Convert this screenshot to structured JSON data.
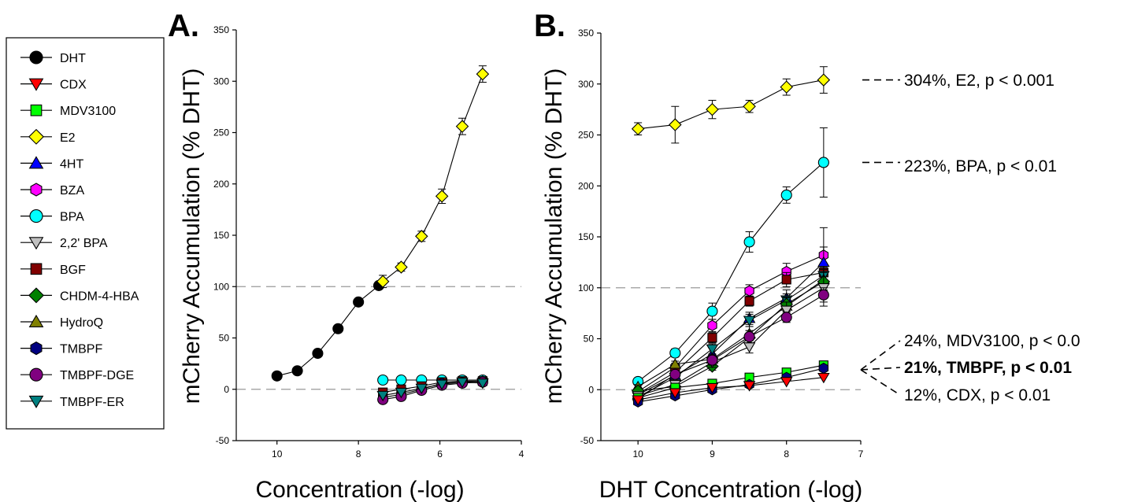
{
  "legend": {
    "items": [
      {
        "name": "DHT",
        "marker": "circle",
        "color": "#000000"
      },
      {
        "name": "CDX",
        "marker": "triangle-down",
        "color": "#ff0000"
      },
      {
        "name": "MDV3100",
        "marker": "square",
        "color": "#00ff00"
      },
      {
        "name": "E2",
        "marker": "diamond",
        "color": "#ffff00"
      },
      {
        "name": "4HT",
        "marker": "triangle-up",
        "color": "#0000ff"
      },
      {
        "name": "BZA",
        "marker": "hexagon",
        "color": "#ff00ff"
      },
      {
        "name": "BPA",
        "marker": "circle",
        "color": "#00ffff"
      },
      {
        "name": "2,2' BPA",
        "marker": "triangle-down",
        "color": "#c0c0c0"
      },
      {
        "name": "BGF",
        "marker": "square",
        "color": "#800000"
      },
      {
        "name": "CHDM-4-HBA",
        "marker": "diamond",
        "color": "#008000"
      },
      {
        "name": "HydroQ",
        "marker": "triangle-up",
        "color": "#808000"
      },
      {
        "name": "TMBPF",
        "marker": "hexagon",
        "color": "#000080"
      },
      {
        "name": "TMBPF-DGE",
        "marker": "circle",
        "color": "#800080"
      },
      {
        "name": "TMBPF-ER",
        "marker": "triangle-down",
        "color": "#008080"
      }
    ]
  },
  "chart_data": [
    {
      "type": "scatter",
      "panel_label": "A.",
      "xlabel": "Concentration (-log)",
      "ylabel": "mCherry Accumulation (% DHT)",
      "xlim": [
        11,
        4
      ],
      "ylim": [
        -50,
        350
      ],
      "x_ticks": [
        "10",
        "8",
        "6",
        "4"
      ],
      "y_ticks": [
        "-50",
        "0",
        "50",
        "100",
        "150",
        "200",
        "250",
        "300",
        "350"
      ],
      "reference_lines": [
        0,
        100
      ],
      "grid": false,
      "series": [
        {
          "name": "DHT",
          "x": [
            10,
            9.5,
            9,
            8.5,
            8,
            7.5
          ],
          "y": [
            13,
            18,
            35,
            59,
            85,
            101
          ]
        },
        {
          "name": "E2",
          "x": [
            7.4,
            6.95,
            6.45,
            5.95,
            5.45,
            4.95
          ],
          "y": [
            105,
            119,
            149,
            188,
            256,
            307
          ],
          "err": [
            6,
            4,
            5,
            7,
            8,
            8
          ]
        },
        {
          "name": "BPA",
          "x": [
            7.4,
            6.95,
            6.45,
            5.95,
            5.45,
            4.95
          ],
          "y": [
            9,
            9,
            9,
            9,
            9,
            9
          ]
        },
        {
          "name": "BGF",
          "x": [
            7.4,
            6.95,
            6.45,
            5.95,
            5.45,
            4.95
          ],
          "y": [
            -3,
            0,
            3,
            7,
            8,
            8
          ]
        },
        {
          "name": "TMBPF",
          "x": [
            7.4,
            6.95,
            6.45,
            5.95,
            5.45,
            4.95
          ],
          "y": [
            -8,
            -5,
            0,
            6,
            7,
            8
          ]
        },
        {
          "name": "TMBPF-DGE",
          "x": [
            7.4,
            6.95,
            6.45,
            5.95,
            5.45,
            4.95
          ],
          "y": [
            -10,
            -7,
            -1,
            4,
            6,
            7
          ]
        },
        {
          "name": "TMBPF-ER",
          "x": [
            7.4,
            6.95,
            6.45,
            5.95,
            5.45,
            4.95
          ],
          "y": [
            -6,
            -3,
            1,
            5,
            7,
            6
          ]
        }
      ]
    },
    {
      "type": "scatter",
      "panel_label": "B.",
      "xlabel": "DHT Concentration (-log)",
      "ylabel": "mCherry Accumulation (% DHT)",
      "xlim": [
        10.5,
        7
      ],
      "ylim": [
        -50,
        350
      ],
      "x_ticks": [
        "10",
        "9",
        "8",
        "7"
      ],
      "y_ticks": [
        "-50",
        "0",
        "50",
        "100",
        "150",
        "200",
        "250",
        "300",
        "350"
      ],
      "reference_lines": [
        0,
        100
      ],
      "grid": false,
      "series": [
        {
          "name": "E2",
          "x": [
            10,
            9.5,
            9,
            8.5,
            8,
            7.5
          ],
          "y": [
            256,
            260,
            275,
            278,
            297,
            304
          ],
          "err": [
            6,
            18,
            9,
            6,
            8,
            13
          ]
        },
        {
          "name": "BPA",
          "x": [
            10,
            9.5,
            9,
            8.5,
            8,
            7.5
          ],
          "y": [
            8,
            36,
            77,
            145,
            191,
            223
          ],
          "err": [
            3,
            4,
            8,
            10,
            8,
            34
          ]
        },
        {
          "name": "BZA",
          "x": [
            10,
            9.5,
            9,
            8.5,
            8,
            7.5
          ],
          "y": [
            -2,
            22,
            63,
            97,
            116,
            132
          ],
          "err": [
            3,
            4,
            6,
            6,
            8,
            8
          ]
        },
        {
          "name": "BGF",
          "x": [
            10,
            9.5,
            9,
            8.5,
            8,
            7.5
          ],
          "y": [
            -4,
            17,
            51,
            87,
            108,
            115
          ],
          "err": [
            2,
            3,
            5,
            5,
            7,
            8
          ]
        },
        {
          "name": "4HT",
          "x": [
            10,
            9.5,
            9,
            8.5,
            8,
            7.5
          ],
          "y": [
            -5,
            14,
            35,
            70,
            90,
            125
          ],
          "err": [
            2,
            3,
            6,
            6,
            8,
            34
          ]
        },
        {
          "name": "TMBPF-ER",
          "x": [
            10,
            9.5,
            9,
            8.5,
            8,
            7.5
          ],
          "y": [
            -7,
            12,
            40,
            68,
            88,
            112
          ],
          "err": [
            2,
            3,
            5,
            6,
            6,
            8
          ]
        },
        {
          "name": "HydroQ",
          "x": [
            10,
            9.5,
            9,
            8.5,
            8,
            7.5
          ],
          "y": [
            3,
            25,
            30,
            55,
            82,
            108
          ],
          "err": [
            2,
            3,
            5,
            7,
            8,
            10
          ]
        },
        {
          "name": "CHDM-4-HBA",
          "x": [
            10,
            9.5,
            9,
            8.5,
            8,
            7.5
          ],
          "y": [
            -1,
            3,
            23,
            51,
            84,
            106
          ],
          "err": [
            2,
            3,
            4,
            7,
            7,
            9
          ]
        },
        {
          "name": "2,2' BPA",
          "x": [
            10,
            9.5,
            9,
            8.5,
            8,
            7.5
          ],
          "y": [
            -6,
            5,
            27,
            42,
            78,
            100
          ],
          "err": [
            2,
            3,
            5,
            6,
            8,
            18
          ]
        },
        {
          "name": "TMBPF-DGE",
          "x": [
            10,
            9.5,
            9,
            8.5,
            8,
            7.5
          ],
          "y": [
            -9,
            15,
            29,
            52,
            71,
            93
          ],
          "err": [
            2,
            3,
            5,
            6,
            5,
            7
          ]
        },
        {
          "name": "MDV3100",
          "x": [
            10,
            9.5,
            9,
            8.5,
            8,
            7.5
          ],
          "y": [
            -8,
            2,
            6,
            12,
            17,
            24
          ]
        },
        {
          "name": "TMBPF",
          "x": [
            10,
            9.5,
            9,
            8.5,
            8,
            7.5
          ],
          "y": [
            -12,
            -6,
            0,
            5,
            12,
            21
          ]
        },
        {
          "name": "CDX",
          "x": [
            10,
            9.5,
            9,
            8.5,
            8,
            7.5
          ],
          "y": [
            -10,
            -3,
            2,
            4,
            8,
            12
          ]
        }
      ],
      "annotations": [
        {
          "text": "304%, E2, p < 0.001",
          "y": 304,
          "bold": false
        },
        {
          "text": "223%, BPA, p < 0.01",
          "y": 223,
          "bold": false
        },
        {
          "text": "24%, MDV3100, p < 0.0",
          "y": 24,
          "bold": false
        },
        {
          "text": "21%, TMBPF, p < 0.01",
          "y": 21,
          "bold": true
        },
        {
          "text": "12%, CDX, p < 0.01",
          "y": 12,
          "bold": false
        }
      ]
    }
  ]
}
